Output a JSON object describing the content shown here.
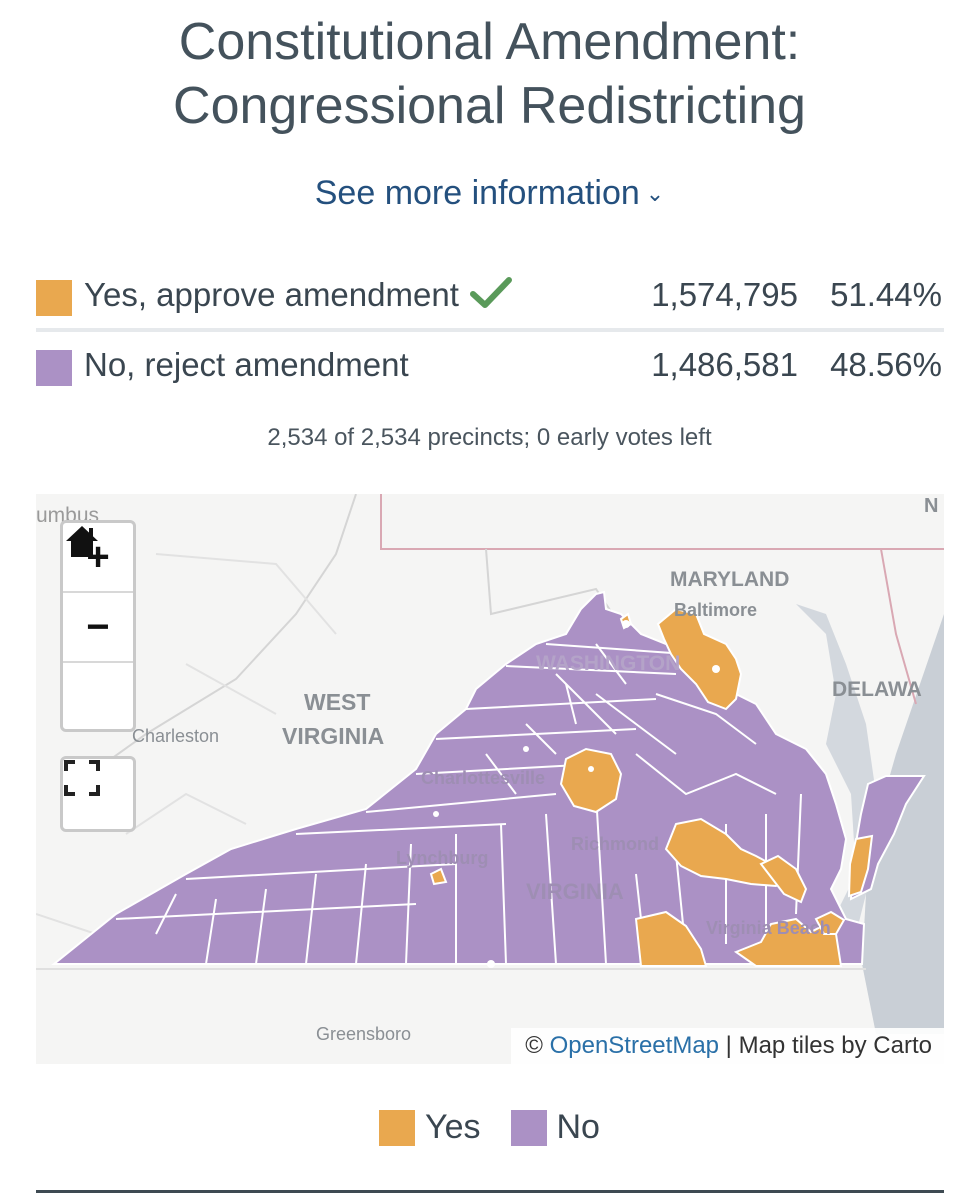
{
  "header": {
    "title_line1": "Constitutional Amendment:",
    "title_line2": "Congressional Redistricting",
    "more_info": "See more information"
  },
  "results": [
    {
      "label": "Yes, approve amendment",
      "votes": "1,574,795",
      "percent": "51.44%",
      "color": "#e9a84f",
      "winner": true
    },
    {
      "label": "No, reject amendment",
      "votes": "1,486,581",
      "percent": "48.56%",
      "color": "#ab91c5",
      "winner": false
    }
  ],
  "precincts_text": "2,534 of 2,534 precincts; 0 early votes left",
  "map": {
    "controls": {
      "zoom_in": "+",
      "zoom_out": "−"
    },
    "place_labels": {
      "columbus": "umbus",
      "maryland": "MARYLAND",
      "baltimore": "Baltimore",
      "washington": "WASHINGTON",
      "delaware": "DELAWA",
      "west_virginia_1": "WEST",
      "west_virginia_2": "VIRGINIA",
      "charleston": "Charleston",
      "charlottesville": "Charlottesville",
      "richmond": "Richmond",
      "lynchburg": "Lynchburg",
      "virginia": "VIRGINIA",
      "virginia_beach": "Virginia Beach",
      "greensboro": "Greensboro",
      "edge_n": "N"
    },
    "attribution": {
      "prefix": "© ",
      "osm": "OpenStreetMap",
      "rest": " | Map tiles by Carto"
    },
    "colors": {
      "yes": "#e9a84f",
      "no": "#ab91c5",
      "water": "#c9cfd6",
      "border": "#d9a8b3"
    }
  },
  "legend": [
    {
      "label": "Yes",
      "color": "#e9a84f"
    },
    {
      "label": "No",
      "color": "#ab91c5"
    }
  ]
}
